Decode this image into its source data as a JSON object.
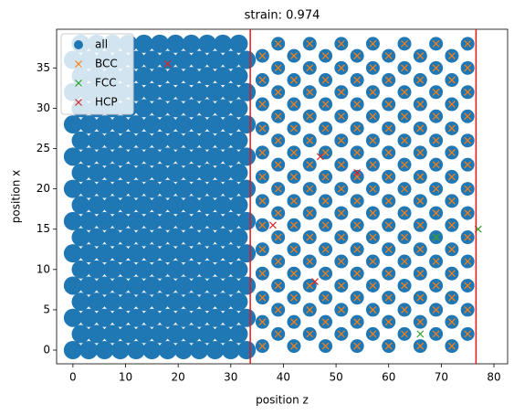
{
  "chart_data": {
    "type": "scatter",
    "title": "strain: 0.974",
    "x_label": "position z",
    "y_label": "position x",
    "xlim": [
      -3.1,
      82.6
    ],
    "ylim": [
      -1.7,
      39.8
    ],
    "xticks": [
      0,
      10,
      20,
      30,
      40,
      50,
      60,
      70,
      80
    ],
    "yticks": [
      0,
      5,
      10,
      15,
      20,
      25,
      30,
      35
    ],
    "legend": "upper left",
    "vlines": [
      33.7,
      76.6
    ],
    "vline_color": "#e8161b",
    "series": [
      {
        "name": "all",
        "marker": "circle",
        "color": "#1f77b4",
        "x": [
          0,
          3,
          6,
          9,
          12,
          15,
          18,
          21,
          24,
          27,
          30,
          33,
          1.5,
          4.5,
          7.5,
          10.5,
          13.5,
          16.5,
          19.5,
          22.5,
          25.5,
          28.5,
          31.5,
          0,
          3,
          6,
          9,
          12,
          15,
          18,
          21,
          24,
          27,
          30,
          33,
          1.5,
          4.5,
          7.5,
          10.5,
          13.5,
          16.5,
          19.5,
          22.5,
          25.5,
          28.5,
          31.5,
          0,
          3,
          6,
          9,
          12,
          15,
          18,
          21,
          24,
          27,
          30,
          33,
          1.5,
          4.5,
          7.5,
          10.5,
          13.5,
          16.5,
          19.5,
          22.5,
          25.5,
          28.5,
          31.5,
          0,
          3,
          6,
          9,
          12,
          15,
          18,
          21,
          24,
          27,
          30,
          33,
          1.5,
          4.5,
          7.5,
          10.5,
          13.5,
          16.5,
          19.5,
          22.5,
          25.5,
          28.5,
          31.5,
          0,
          3,
          6,
          9,
          12,
          15,
          18,
          21,
          24,
          27,
          30,
          33,
          1.5,
          4.5,
          7.5,
          10.5,
          13.5,
          16.5,
          19.5,
          22.5,
          25.5,
          28.5,
          31.5,
          0,
          3,
          6,
          9,
          12,
          15,
          18,
          21,
          24,
          27,
          30,
          33,
          1.5,
          4.5,
          7.5,
          10.5,
          13.5,
          16.5,
          19.5,
          22.5,
          25.5,
          28.5,
          31.5,
          0,
          3,
          6,
          9,
          12,
          15,
          18,
          21,
          24,
          27,
          30,
          33,
          1.5,
          4.5,
          7.5,
          10.5,
          13.5,
          16.5,
          19.5,
          22.5,
          25.5,
          28.5,
          31.5,
          0,
          3,
          6,
          9,
          12,
          15,
          18,
          21,
          24,
          27,
          30,
          33,
          1.5,
          4.5,
          7.5,
          10.5,
          13.5,
          16.5,
          19.5,
          22.5,
          25.5,
          28.5,
          31.5,
          0,
          3,
          6,
          9,
          12,
          15,
          18,
          21,
          24,
          27,
          30,
          33,
          1.5,
          4.5,
          7.5,
          10.5,
          13.5,
          16.5,
          19.5,
          22.5,
          25.5,
          28.5,
          31.5,
          0,
          3,
          6,
          9,
          12,
          15,
          18,
          21,
          24,
          27,
          30,
          33,
          1.5,
          4.5,
          7.5,
          10.5,
          13.5,
          16.5,
          19.5,
          22.5,
          25.5,
          28.5,
          31.5,
          36,
          42,
          48,
          54,
          60,
          66,
          72,
          39,
          45,
          51,
          57,
          63,
          69,
          75,
          36,
          42,
          48,
          54,
          60,
          66,
          72,
          39,
          45,
          51,
          57,
          63,
          69,
          75,
          36,
          42,
          48,
          54,
          60,
          66,
          72,
          39,
          45,
          51,
          57,
          63,
          69,
          75,
          36,
          42,
          48,
          54,
          60,
          66,
          72,
          39,
          45,
          51,
          57,
          63,
          69,
          75,
          36,
          42,
          48,
          54,
          60,
          66,
          72,
          39,
          45,
          51,
          57,
          63,
          69,
          75,
          36,
          42,
          48,
          54,
          60,
          66,
          72,
          39,
          45,
          51,
          57,
          63,
          69,
          75,
          36,
          42,
          48,
          54,
          60,
          66,
          72,
          39,
          45,
          51,
          57,
          63,
          69,
          75,
          36,
          42,
          48,
          54,
          60,
          66,
          72,
          39,
          45,
          51,
          57,
          63,
          69,
          75,
          36,
          42,
          48,
          54,
          60,
          66,
          72,
          39,
          45,
          51,
          57,
          63,
          69,
          75,
          36,
          42,
          48,
          54,
          60,
          66,
          72,
          39,
          45,
          51,
          57,
          63,
          69,
          75,
          36,
          42,
          48,
          54,
          60,
          66,
          72,
          39,
          45,
          51,
          57,
          63,
          69,
          75,
          36,
          42,
          48,
          54,
          60,
          66,
          72,
          39,
          45,
          51,
          57,
          63,
          69,
          75,
          36,
          42,
          48,
          54,
          60,
          66,
          72,
          39,
          45,
          51,
          57,
          63,
          69,
          75
        ],
        "values": [
          0,
          0,
          0,
          0,
          0,
          0,
          0,
          0,
          0,
          0,
          0,
          0,
          2,
          2,
          2,
          2,
          2,
          2,
          2,
          2,
          2,
          2,
          2,
          4,
          4,
          4,
          4,
          4,
          4,
          4,
          4,
          4,
          4,
          4,
          4,
          6,
          6,
          6,
          6,
          6,
          6,
          6,
          6,
          6,
          6,
          6,
          8,
          8,
          8,
          8,
          8,
          8,
          8,
          8,
          8,
          8,
          8,
          8,
          10,
          10,
          10,
          10,
          10,
          10,
          10,
          10,
          10,
          10,
          10,
          12,
          12,
          12,
          12,
          12,
          12,
          12,
          12,
          12,
          12,
          12,
          12,
          14,
          14,
          14,
          14,
          14,
          14,
          14,
          14,
          14,
          14,
          14,
          16,
          16,
          16,
          16,
          16,
          16,
          16,
          16,
          16,
          16,
          16,
          16,
          18,
          18,
          18,
          18,
          18,
          18,
          18,
          18,
          18,
          18,
          18,
          20,
          20,
          20,
          20,
          20,
          20,
          20,
          20,
          20,
          20,
          20,
          20,
          22,
          22,
          22,
          22,
          22,
          22,
          22,
          22,
          22,
          22,
          22,
          24,
          24,
          24,
          24,
          24,
          24,
          24,
          24,
          24,
          24,
          24,
          24,
          26,
          26,
          26,
          26,
          26,
          26,
          26,
          26,
          26,
          26,
          26,
          28,
          28,
          28,
          28,
          28,
          28,
          28,
          28,
          28,
          28,
          28,
          28,
          30,
          30,
          30,
          30,
          30,
          30,
          30,
          30,
          30,
          30,
          30,
          32,
          32,
          32,
          32,
          32,
          32,
          32,
          32,
          32,
          32,
          32,
          32,
          34,
          34,
          34,
          34,
          34,
          34,
          34,
          34,
          34,
          34,
          34,
          36,
          36,
          36,
          36,
          36,
          36,
          36,
          36,
          36,
          36,
          36,
          36,
          38,
          38,
          38,
          38,
          38,
          38,
          38,
          38,
          38,
          38,
          38,
          0.5,
          0.5,
          0.5,
          0.5,
          0.5,
          0.5,
          0.5,
          2,
          2,
          2,
          2,
          2,
          2,
          2,
          3.5,
          3.5,
          3.5,
          3.5,
          3.5,
          3.5,
          3.5,
          5,
          5,
          5,
          5,
          5,
          5,
          5,
          6.5,
          6.5,
          6.5,
          6.5,
          6.5,
          6.5,
          6.5,
          8,
          8,
          8,
          8,
          8,
          8,
          8,
          9.5,
          9.5,
          9.5,
          9.5,
          9.5,
          9.5,
          9.5,
          11,
          11,
          11,
          11,
          11,
          11,
          11,
          12.5,
          12.5,
          12.5,
          12.5,
          12.5,
          12.5,
          12.5,
          14,
          14,
          14,
          14,
          14,
          14,
          14,
          15.5,
          15.5,
          15.5,
          15.5,
          15.5,
          15.5,
          15.5,
          17,
          17,
          17,
          17,
          17,
          17,
          17,
          18.5,
          18.5,
          18.5,
          18.5,
          18.5,
          18.5,
          18.5,
          20,
          20,
          20,
          20,
          20,
          20,
          20,
          21.5,
          21.5,
          21.5,
          21.5,
          21.5,
          21.5,
          21.5,
          23,
          23,
          23,
          23,
          23,
          23,
          23,
          24.5,
          24.5,
          24.5,
          24.5,
          24.5,
          24.5,
          24.5,
          26,
          26,
          26,
          26,
          26,
          26,
          26,
          27.5,
          27.5,
          27.5,
          27.5,
          27.5,
          27.5,
          27.5,
          29,
          29,
          29,
          29,
          29,
          29,
          29,
          30.5,
          30.5,
          30.5,
          30.5,
          30.5,
          30.5,
          30.5,
          32,
          32,
          32,
          32,
          32,
          32,
          32,
          33.5,
          33.5,
          33.5,
          33.5,
          33.5,
          33.5,
          33.5,
          35,
          35,
          35,
          35,
          35,
          35,
          35,
          36.5,
          36.5,
          36.5,
          36.5,
          36.5,
          36.5,
          36.5,
          38,
          38,
          38,
          38,
          38,
          38,
          38
        ]
      },
      {
        "name": "BCC",
        "marker": "x",
        "color": "#ff7f0e",
        "x": [
          36,
          42,
          48,
          54,
          60,
          66,
          72,
          39,
          45,
          51,
          57,
          63,
          69,
          75,
          36,
          42,
          48,
          54,
          60,
          66,
          72,
          39,
          45,
          51,
          57,
          63,
          69,
          75,
          36,
          42,
          48,
          54,
          60,
          66,
          72,
          39,
          45,
          51,
          57,
          63,
          69,
          75,
          36,
          42,
          48,
          54,
          60,
          66,
          72,
          39,
          45,
          51,
          57,
          63,
          69,
          75,
          36,
          42,
          48,
          54,
          60,
          66,
          72,
          39,
          45,
          51,
          57,
          63,
          69,
          75,
          36,
          42,
          48,
          54,
          60,
          66,
          72,
          39,
          45,
          51,
          57,
          63,
          69,
          75,
          36,
          42,
          48,
          54,
          60,
          66,
          72,
          39,
          45,
          51,
          57,
          63,
          69,
          75,
          36,
          42,
          48,
          54,
          60,
          66,
          72,
          39,
          45,
          51,
          57,
          63,
          69,
          75,
          36,
          42,
          48,
          54,
          60,
          66,
          72,
          39,
          45,
          51,
          57,
          63,
          69,
          75,
          36,
          42,
          48,
          54,
          60,
          66,
          72,
          39,
          45,
          51,
          57,
          63,
          69,
          75,
          36,
          42,
          48,
          54,
          60,
          66,
          72,
          39,
          45,
          51,
          57,
          63,
          69,
          75,
          36,
          42,
          48,
          54,
          60,
          66,
          72,
          39,
          45,
          51,
          57,
          63,
          69,
          75,
          36,
          42,
          48,
          54,
          60,
          66,
          72,
          39,
          45,
          51,
          57,
          63,
          69,
          75
        ],
        "values": [
          0.5,
          0.5,
          0.5,
          0.5,
          0.5,
          0.5,
          0.5,
          2,
          2,
          2,
          2,
          2,
          2,
          2,
          3.5,
          3.5,
          3.5,
          3.5,
          3.5,
          3.5,
          3.5,
          5,
          5,
          5,
          5,
          5,
          5,
          5,
          6.5,
          6.5,
          6.5,
          6.5,
          6.5,
          6.5,
          6.5,
          8,
          8,
          8,
          8,
          8,
          8,
          8,
          9.5,
          9.5,
          9.5,
          9.5,
          9.5,
          9.5,
          9.5,
          11,
          11,
          11,
          11,
          11,
          11,
          11,
          12.5,
          12.5,
          12.5,
          12.5,
          12.5,
          12.5,
          12.5,
          14,
          14,
          14,
          14,
          14,
          14,
          14,
          15.5,
          15.5,
          15.5,
          15.5,
          15.5,
          15.5,
          15.5,
          17,
          17,
          17,
          17,
          17,
          17,
          17,
          18.5,
          18.5,
          18.5,
          18.5,
          18.5,
          18.5,
          18.5,
          20,
          20,
          20,
          20,
          20,
          20,
          20,
          21.5,
          21.5,
          21.5,
          21.5,
          21.5,
          21.5,
          21.5,
          23,
          23,
          23,
          23,
          23,
          23,
          23,
          24.5,
          24.5,
          24.5,
          24.5,
          24.5,
          24.5,
          24.5,
          26,
          26,
          26,
          26,
          26,
          26,
          26,
          27.5,
          27.5,
          27.5,
          27.5,
          27.5,
          27.5,
          27.5,
          29,
          29,
          29,
          29,
          29,
          29,
          29,
          30.5,
          30.5,
          30.5,
          30.5,
          30.5,
          30.5,
          30.5,
          32,
          32,
          32,
          32,
          32,
          32,
          32,
          33.5,
          33.5,
          33.5,
          33.5,
          33.5,
          33.5,
          33.5,
          35,
          35,
          35,
          35,
          35,
          35,
          35,
          36.5,
          36.5,
          36.5,
          36.5,
          36.5,
          36.5,
          36.5,
          38,
          38,
          38,
          38,
          38,
          38,
          38
        ]
      },
      {
        "name": "FCC",
        "marker": "x",
        "color": "#2ca02c",
        "x": [
          69,
          66,
          77
        ],
        "values": [
          14,
          2,
          15
        ]
      },
      {
        "name": "HCP",
        "marker": "x",
        "color": "#d62728",
        "x": [
          18,
          38,
          46,
          54,
          47
        ],
        "values": [
          35.5,
          15.5,
          8.5,
          22,
          24
        ]
      }
    ]
  }
}
